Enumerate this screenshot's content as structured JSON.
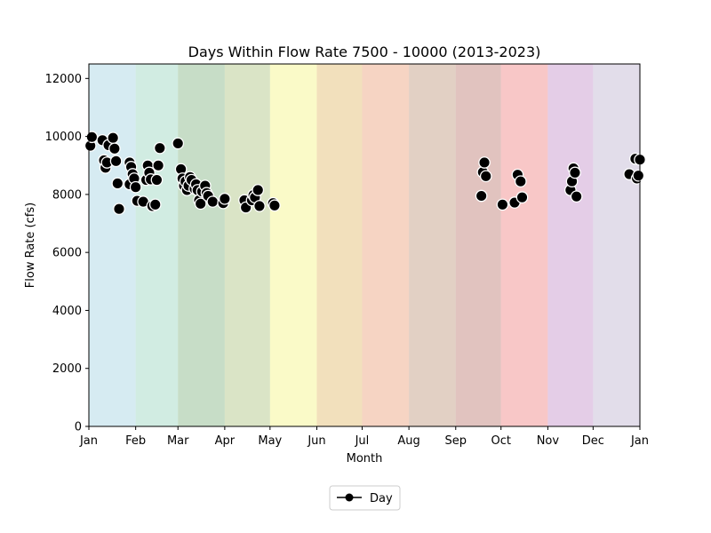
{
  "chart_data": {
    "type": "scatter",
    "title": "Days Within Flow Rate 7500 - 10000 (2013-2023)",
    "xlabel": "Month",
    "ylabel": "Flow Rate (cfs)",
    "xlim": [
      0,
      365
    ],
    "ylim": [
      0,
      12500
    ],
    "yticks": [
      0,
      2000,
      4000,
      6000,
      8000,
      10000,
      12000
    ],
    "months": [
      "Jan",
      "Feb",
      "Mar",
      "Apr",
      "May",
      "Jun",
      "Jul",
      "Aug",
      "Sep",
      "Oct",
      "Nov",
      "Dec",
      "Jan"
    ],
    "month_starts": [
      0,
      31,
      59,
      90,
      120,
      151,
      181,
      212,
      243,
      273,
      304,
      334,
      365
    ],
    "band_colors": [
      "#add8e6",
      "#a3d9c5",
      "#8fbc8f",
      "#b5c98e",
      "#f5f591",
      "#e6c27a",
      "#eea987",
      "#c6a28a",
      "#c3887f",
      "#f2908f",
      "#c99bd0",
      "#c5bbd6"
    ],
    "legend": {
      "label": "Day",
      "position": "below"
    },
    "grid": false,
    "series": [
      {
        "name": "Day",
        "color": "#000000",
        "points": [
          [
            1,
            9680
          ],
          [
            2,
            9980
          ],
          [
            9,
            9870
          ],
          [
            10,
            9180
          ],
          [
            11,
            8920
          ],
          [
            12,
            9100
          ],
          [
            13,
            9700
          ],
          [
            16,
            9950
          ],
          [
            17,
            9580
          ],
          [
            18,
            9150
          ],
          [
            19,
            8380
          ],
          [
            20,
            7500
          ],
          [
            27,
            8350
          ],
          [
            27,
            9100
          ],
          [
            28,
            8950
          ],
          [
            29,
            8700
          ],
          [
            30,
            8550
          ],
          [
            31,
            8250
          ],
          [
            32,
            7780
          ],
          [
            36,
            7750
          ],
          [
            38,
            8500
          ],
          [
            39,
            9000
          ],
          [
            40,
            8750
          ],
          [
            41,
            8520
          ],
          [
            42,
            7600
          ],
          [
            44,
            7650
          ],
          [
            45,
            8500
          ],
          [
            46,
            9000
          ],
          [
            47,
            9600
          ],
          [
            59,
            9760
          ],
          [
            61,
            8870
          ],
          [
            62,
            8550
          ],
          [
            63,
            8300
          ],
          [
            64,
            8450
          ],
          [
            65,
            8150
          ],
          [
            66,
            8300
          ],
          [
            67,
            8600
          ],
          [
            68,
            8500
          ],
          [
            70,
            8200
          ],
          [
            71,
            8350
          ],
          [
            72,
            8150
          ],
          [
            73,
            7800
          ],
          [
            74,
            7680
          ],
          [
            75,
            8100
          ],
          [
            77,
            8300
          ],
          [
            78,
            8050
          ],
          [
            79,
            7950
          ],
          [
            82,
            7750
          ],
          [
            89,
            7700
          ],
          [
            90,
            7850
          ],
          [
            103,
            7800
          ],
          [
            104,
            7550
          ],
          [
            108,
            7800
          ],
          [
            109,
            7980
          ],
          [
            110,
            7900
          ],
          [
            112,
            8150
          ],
          [
            113,
            7600
          ],
          [
            122,
            7700
          ],
          [
            123,
            7620
          ],
          [
            260,
            7950
          ],
          [
            261,
            8770
          ],
          [
            262,
            9100
          ],
          [
            263,
            8630
          ],
          [
            274,
            7650
          ],
          [
            282,
            7720
          ],
          [
            284,
            8680
          ],
          [
            286,
            8450
          ],
          [
            287,
            7900
          ],
          [
            319,
            8150
          ],
          [
            320,
            8450
          ],
          [
            321,
            8900
          ],
          [
            322,
            8750
          ],
          [
            323,
            7930
          ],
          [
            358,
            8700
          ],
          [
            362,
            9230
          ],
          [
            363,
            8550
          ],
          [
            364,
            8650
          ],
          [
            365,
            9200
          ]
        ]
      }
    ]
  }
}
